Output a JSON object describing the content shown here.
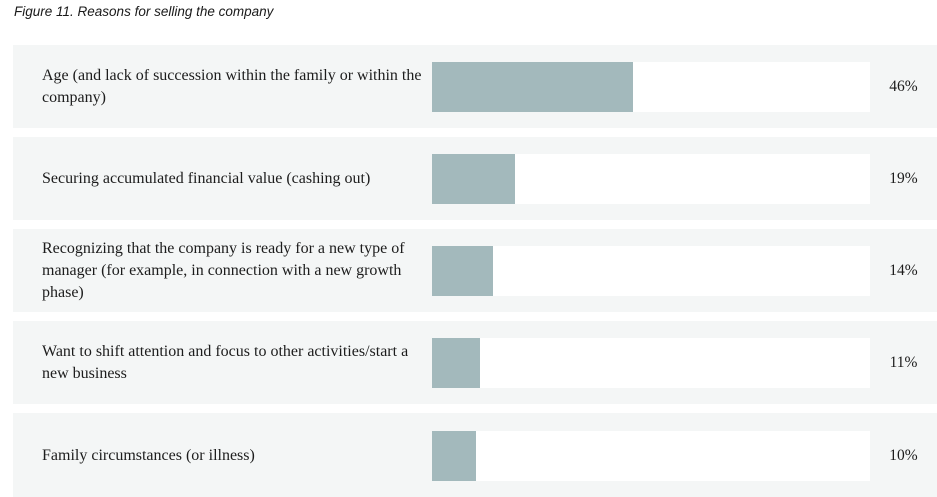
{
  "figure": {
    "title": "Figure 11. Reasons for selling the company"
  },
  "colors": {
    "bar_fill": "#a3b9bc",
    "row_background": "#f4f6f6",
    "track_background": "#ffffff",
    "text": "#1c1c1c"
  },
  "chart_data": {
    "type": "bar",
    "orientation": "horizontal",
    "title": "Figure 11. Reasons for selling the company",
    "categories": [
      "Age (and lack of succession within the family or within the company)",
      "Securing accumulated financial value (cashing out)",
      "Recognizing that the company is ready for a new type of manager (for example, in connection with a new growth phase)",
      "Want to shift attention and focus to other activities/start a new business",
      "Family circumstances (or illness)"
    ],
    "values": [
      46,
      19,
      14,
      11,
      10
    ],
    "value_labels": [
      "46%",
      "19%",
      "14%",
      "11%",
      "10%"
    ],
    "xlim": [
      0,
      100
    ],
    "unit": "percent",
    "grid": false,
    "legend_position": "none"
  }
}
